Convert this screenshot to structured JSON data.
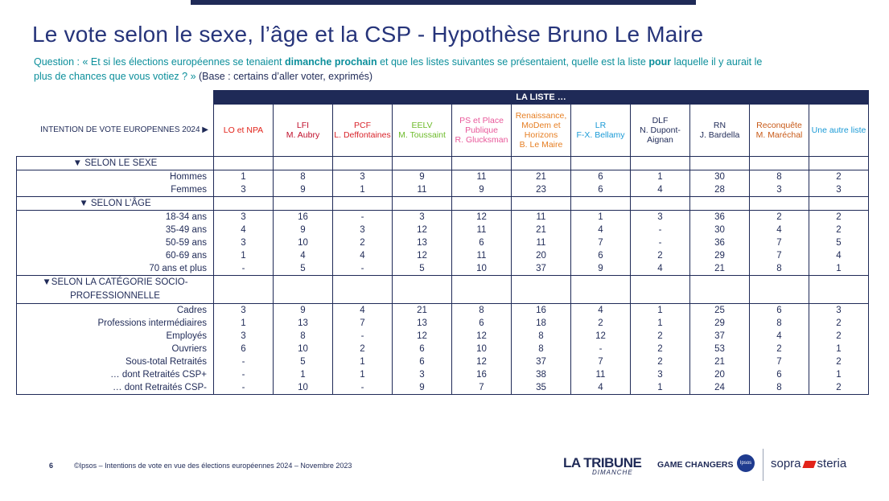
{
  "title": "Le vote selon le sexe, l’âge et la CSP - Hypothèse Bruno Le Maire",
  "question": {
    "prefix": "Question : « Et si les élections européennes se tenaient ",
    "bold1": "dimanche prochain",
    "mid1": " et que les listes suivantes se présentaient, quelle est la liste ",
    "bold2": "pour",
    "mid2": " laquelle il y aurait le plus de chances que vous votiez ?  »",
    "base": " (Base : certains d’aller voter, exprimés)"
  },
  "table": {
    "top_header": "LA LISTE …",
    "row_header_label": "INTENTION DE VOTE EUROPENNES 2024 ▶",
    "columns": [
      {
        "line1": "LO et NPA",
        "line2": "",
        "color": "#e2231a"
      },
      {
        "line1": "LFI",
        "line2": "M. Aubry",
        "color": "#c0102c"
      },
      {
        "line1": "PCF",
        "line2": "L. Deffontaines",
        "color": "#d8232a"
      },
      {
        "line1": "EELV",
        "line2": "M. Toussaint",
        "color": "#6dbb2a"
      },
      {
        "line1": "PS et Place Publique",
        "line2": "R. Glucksman",
        "color": "#e8589a"
      },
      {
        "line1": "Renaissance, MoDem et Horizons",
        "line2": "B. Le Maire",
        "color": "#e67e22"
      },
      {
        "line1": "LR",
        "line2": "F-X. Bellamy",
        "color": "#1a9ad6"
      },
      {
        "line1": "DLF",
        "line2": "N. Dupont-Aignan",
        "color": "#1f2a57"
      },
      {
        "line1": "RN",
        "line2": "J. Bardella",
        "color": "#1f2a57"
      },
      {
        "line1": "Reconquête",
        "line2": "M. Maréchal",
        "color": "#c85a18"
      },
      {
        "line1": "Une autre liste",
        "line2": "",
        "color": "#1a9ad6"
      }
    ],
    "sections": [
      {
        "title": "▼ SELON LE SEXE",
        "rows": [
          {
            "label": "Hommes",
            "values": [
              "1",
              "8",
              "3",
              "9",
              "11",
              "21",
              "6",
              "1",
              "30",
              "8",
              "2"
            ]
          },
          {
            "label": "Femmes",
            "values": [
              "3",
              "9",
              "1",
              "11",
              "9",
              "23",
              "6",
              "4",
              "28",
              "3",
              "3"
            ]
          }
        ]
      },
      {
        "title": "▼ SELON L’ÂGE",
        "rows": [
          {
            "label": "18-34 ans",
            "values": [
              "3",
              "16",
              "-",
              "3",
              "12",
              "11",
              "1",
              "3",
              "36",
              "2",
              "2"
            ]
          },
          {
            "label": "35-49 ans",
            "values": [
              "4",
              "9",
              "3",
              "12",
              "11",
              "21",
              "4",
              "-",
              "30",
              "4",
              "2"
            ]
          },
          {
            "label": "50-59 ans",
            "values": [
              "3",
              "10",
              "2",
              "13",
              "6",
              "11",
              "7",
              "-",
              "36",
              "7",
              "5"
            ]
          },
          {
            "label": "60-69 ans",
            "values": [
              "1",
              "4",
              "4",
              "12",
              "11",
              "20",
              "6",
              "2",
              "29",
              "7",
              "4"
            ]
          },
          {
            "label": "70 ans et plus",
            "values": [
              "-",
              "5",
              "-",
              "5",
              "10",
              "37",
              "9",
              "4",
              "21",
              "8",
              "1"
            ]
          }
        ]
      },
      {
        "title": "▼SELON LA CATÉGORIE SOCIO-PROFESSIONNELLE",
        "title_line1": "▼SELON LA CATÉGORIE SOCIO-",
        "title_line2": "PROFESSIONNELLE",
        "rows": [
          {
            "label": "Cadres",
            "values": [
              "3",
              "9",
              "4",
              "21",
              "8",
              "16",
              "4",
              "1",
              "25",
              "6",
              "3"
            ]
          },
          {
            "label": "Professions intermédiaires",
            "values": [
              "1",
              "13",
              "7",
              "13",
              "6",
              "18",
              "2",
              "1",
              "29",
              "8",
              "2"
            ]
          },
          {
            "label": "Employés",
            "values": [
              "3",
              "8",
              "-",
              "12",
              "12",
              "8",
              "12",
              "2",
              "37",
              "4",
              "2"
            ]
          },
          {
            "label": "Ouvriers",
            "values": [
              "6",
              "10",
              "2",
              "6",
              "10",
              "8",
              "-",
              "2",
              "53",
              "2",
              "1"
            ]
          },
          {
            "label": "Sous-total Retraités",
            "values": [
              "-",
              "5",
              "1",
              "6",
              "12",
              "37",
              "7",
              "2",
              "21",
              "7",
              "2"
            ]
          },
          {
            "label": "… dont Retraités CSP+",
            "values": [
              "-",
              "1",
              "1",
              "3",
              "16",
              "38",
              "11",
              "3",
              "20",
              "6",
              "1"
            ]
          },
          {
            "label": "… dont Retraités CSP-",
            "values": [
              "-",
              "10",
              "-",
              "9",
              "7",
              "35",
              "4",
              "1",
              "24",
              "8",
              "2"
            ]
          }
        ]
      }
    ]
  },
  "footer": {
    "page_number": "6",
    "source": "©Ipsos – Intentions de vote en vue des élections européennes 2024 – Novembre 2023",
    "logo_tribune": "LA TRIBUNE",
    "logo_tribune_sub": "DIMANCHE",
    "logo_gc": "GAME CHANGERS",
    "logo_ipsos": "Ipsos",
    "logo_sopra_left": "sopra",
    "logo_sopra_right": "steria"
  }
}
